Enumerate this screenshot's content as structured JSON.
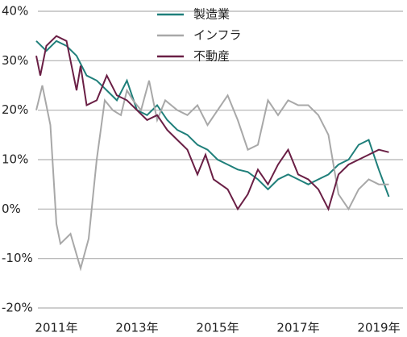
{
  "chart_data": {
    "type": "line",
    "series": [
      {
        "name": "製造業",
        "color": "#1f7f7a",
        "x": [
          2010.5,
          2010.75,
          2011,
          2011.25,
          2011.5,
          2011.75,
          2012,
          2012.25,
          2012.5,
          2012.75,
          2013,
          2013.25,
          2013.5,
          2013.75,
          2014,
          2014.25,
          2014.5,
          2014.75,
          2015,
          2015.25,
          2015.5,
          2015.75,
          2016,
          2016.25,
          2016.5,
          2016.75,
          2017,
          2017.25,
          2017.5,
          2017.75,
          2018,
          2018.25,
          2018.5,
          2018.75,
          2019,
          2019.25
        ],
        "values": [
          34,
          32,
          34,
          33,
          31,
          27,
          26,
          24,
          22,
          26,
          20,
          19,
          21,
          18,
          16,
          15,
          13,
          12,
          10,
          9,
          8,
          7.5,
          6,
          4,
          6,
          7,
          6,
          5,
          6,
          7,
          9,
          10,
          13,
          14,
          8,
          2.5
        ]
      },
      {
        "name": "インフラ",
        "color": "#a8a8a8",
        "x": [
          2010.5,
          2010.65,
          2010.85,
          2011,
          2011.1,
          2011.35,
          2011.6,
          2011.8,
          2012,
          2012.2,
          2012.4,
          2012.6,
          2012.75,
          2012.9,
          2013.1,
          2013.3,
          2013.5,
          2013.7,
          2014,
          2014.25,
          2014.5,
          2014.75,
          2015,
          2015.25,
          2015.5,
          2015.75,
          2016,
          2016.25,
          2016.5,
          2016.75,
          2017,
          2017.25,
          2017.5,
          2017.75,
          2018,
          2018.25,
          2018.5,
          2018.75,
          2019,
          2019.25
        ],
        "values": [
          20,
          25,
          17,
          -3,
          -7,
          -5,
          -12,
          -6,
          10,
          22,
          20,
          19,
          24,
          22,
          20,
          26,
          18,
          22,
          20,
          19,
          21,
          17,
          20,
          23,
          18,
          12,
          13,
          22,
          19,
          22,
          21,
          21,
          19,
          15,
          3,
          0,
          4,
          6,
          5,
          5
        ]
      },
      {
        "name": "不動産",
        "color": "#6a1f45",
        "x": [
          2010.5,
          2010.6,
          2010.75,
          2011,
          2011.25,
          2011.5,
          2011.6,
          2011.75,
          2012,
          2012.25,
          2012.5,
          2012.75,
          2013,
          2013.25,
          2013.5,
          2013.75,
          2014,
          2014.25,
          2014.5,
          2014.7,
          2014.9,
          2015.25,
          2015.5,
          2015.75,
          2016,
          2016.25,
          2016.5,
          2016.75,
          2017,
          2017.25,
          2017.5,
          2017.75,
          2018,
          2018.25,
          2018.5,
          2018.75,
          2019,
          2019.25
        ],
        "values": [
          31,
          27,
          33,
          35,
          34,
          24,
          29,
          21,
          22,
          27,
          23,
          22,
          20,
          18,
          19,
          16,
          14,
          12,
          7,
          11,
          6,
          4,
          0,
          3,
          8,
          5,
          9,
          12,
          7,
          6,
          4,
          0,
          7,
          9,
          10,
          11,
          12,
          11.5
        ]
      }
    ],
    "ylim": [
      -20,
      40
    ],
    "yticks": [
      {
        "value": -20,
        "label": "-20%"
      },
      {
        "value": -10,
        "label": "-10%"
      },
      {
        "value": 0,
        "label": "0%"
      },
      {
        "value": 10,
        "label": "10%"
      },
      {
        "value": 20,
        "label": "20%"
      },
      {
        "value": 30,
        "label": "30%"
      },
      {
        "value": 40,
        "label": "40%"
      }
    ],
    "xlim": [
      2010.54,
      2019.6
    ],
    "xticks": [
      {
        "value": 2011,
        "label": "2011年"
      },
      {
        "value": 2013,
        "label": "2013年"
      },
      {
        "value": 2015,
        "label": "2015年"
      },
      {
        "value": 2017,
        "label": "2017年"
      },
      {
        "value": 2019,
        "label": "2019年"
      }
    ],
    "grid": true
  }
}
